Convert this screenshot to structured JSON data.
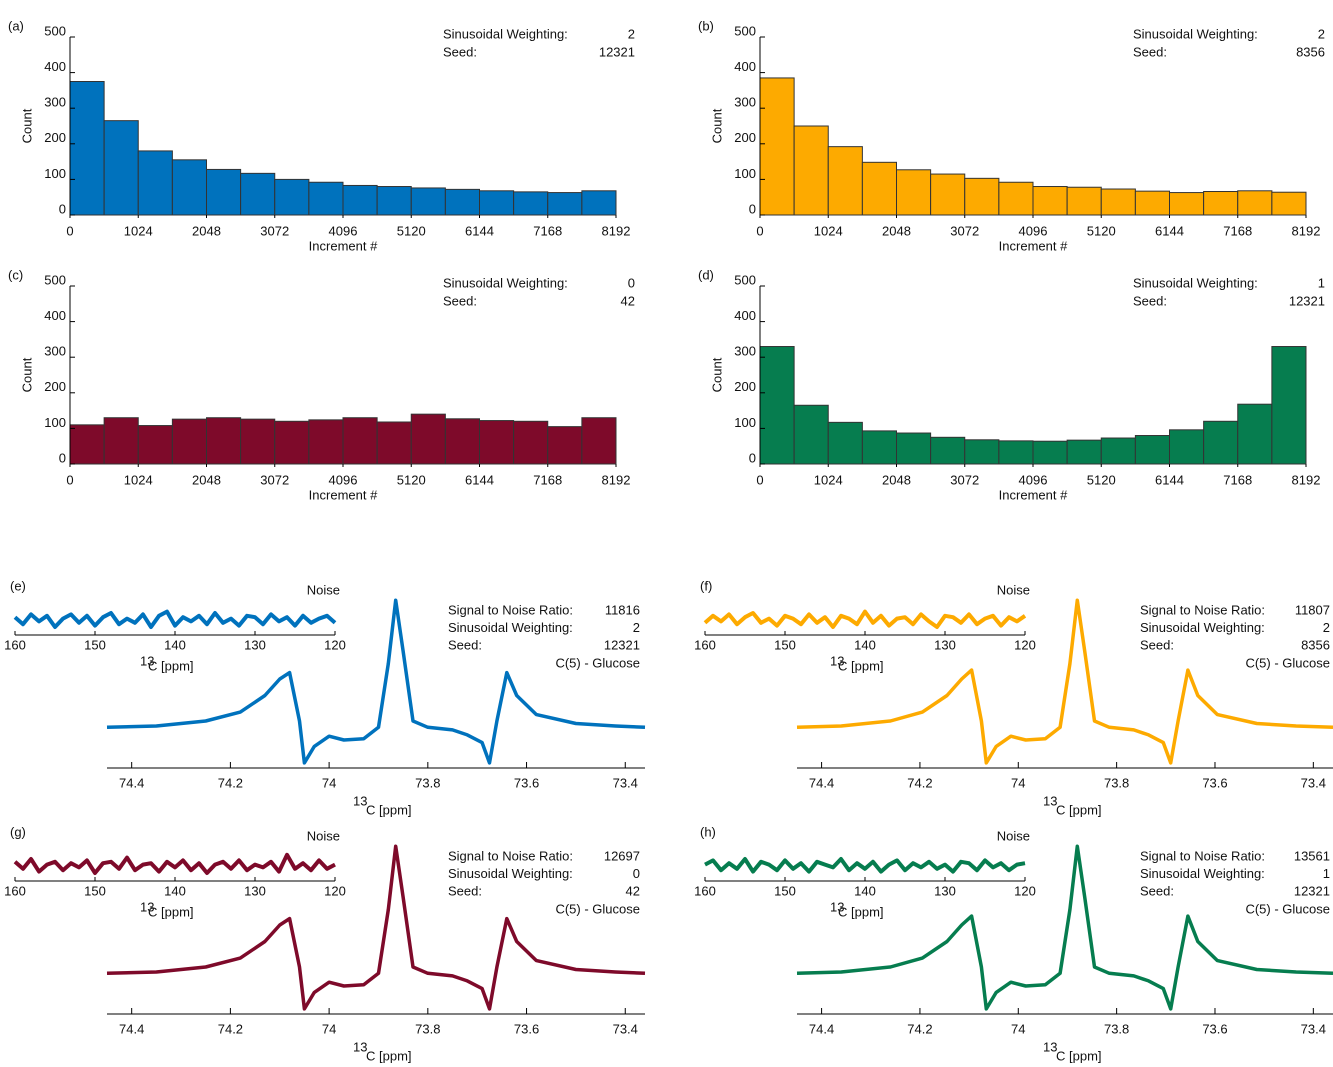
{
  "chart_data": [
    {
      "type": "histogram",
      "panel": "(a)",
      "bins": [
        0,
        512,
        1024,
        1536,
        2048,
        2560,
        3072,
        3584,
        4096,
        4608,
        5120,
        5632,
        6144,
        6656,
        7168,
        7680,
        8192
      ],
      "values": [
        375,
        265,
        180,
        155,
        128,
        117,
        100,
        92,
        83,
        80,
        76,
        72,
        68,
        65,
        63,
        68
      ],
      "color": "#0072bd",
      "xlim": [
        0,
        8192
      ],
      "ylim": [
        0,
        500
      ],
      "xticks": [
        0,
        1024,
        2048,
        3072,
        4096,
        5120,
        6144,
        7168,
        8192
      ],
      "yticks": [
        0,
        100,
        200,
        300,
        400,
        500
      ],
      "xlabel": "Increment #",
      "ylabel": "Count",
      "annotations": [
        {
          "label": "Sinusoidal Weighting:",
          "value": 2
        },
        {
          "label": "Seed:",
          "value": 12321
        }
      ]
    },
    {
      "type": "histogram",
      "panel": "(b)",
      "bins": [
        0,
        512,
        1024,
        1536,
        2048,
        2560,
        3072,
        3584,
        4096,
        4608,
        5120,
        5632,
        6144,
        6656,
        7168,
        7680,
        8192
      ],
      "values": [
        385,
        250,
        192,
        148,
        127,
        115,
        103,
        92,
        80,
        78,
        73,
        67,
        63,
        66,
        68,
        64
      ],
      "color": "#fdaa00",
      "xlim": [
        0,
        8192
      ],
      "ylim": [
        0,
        500
      ],
      "xticks": [
        0,
        1024,
        2048,
        3072,
        4096,
        5120,
        6144,
        7168,
        8192
      ],
      "yticks": [
        0,
        100,
        200,
        300,
        400,
        500
      ],
      "xlabel": "Increment #",
      "ylabel": "Count",
      "annotations": [
        {
          "label": "Sinusoidal Weighting:",
          "value": 2
        },
        {
          "label": "Seed:",
          "value": 8356
        }
      ]
    },
    {
      "type": "histogram",
      "panel": "(c)",
      "bins": [
        0,
        512,
        1024,
        1536,
        2048,
        2560,
        3072,
        3584,
        4096,
        4608,
        5120,
        5632,
        6144,
        6656,
        7168,
        7680,
        8192
      ],
      "values": [
        110,
        130,
        108,
        126,
        130,
        126,
        120,
        124,
        130,
        118,
        140,
        127,
        122,
        120,
        105,
        130
      ],
      "color": "#7e0a2a",
      "xlim": [
        0,
        8192
      ],
      "ylim": [
        0,
        500
      ],
      "xticks": [
        0,
        1024,
        2048,
        3072,
        4096,
        5120,
        6144,
        7168,
        8192
      ],
      "yticks": [
        0,
        100,
        200,
        300,
        400,
        500
      ],
      "xlabel": "Increment #",
      "ylabel": "Count",
      "annotations": [
        {
          "label": "Sinusoidal Weighting:",
          "value": 0
        },
        {
          "label": "Seed:",
          "value": 42
        }
      ]
    },
    {
      "type": "histogram",
      "panel": "(d)",
      "bins": [
        0,
        512,
        1024,
        1536,
        2048,
        2560,
        3072,
        3584,
        4096,
        4608,
        5120,
        5632,
        6144,
        6656,
        7168,
        7680,
        8192
      ],
      "values": [
        330,
        165,
        117,
        93,
        87,
        75,
        68,
        65,
        64,
        67,
        73,
        80,
        96,
        120,
        168,
        330
      ],
      "color": "#067d4f",
      "xlim": [
        0,
        8192
      ],
      "ylim": [
        0,
        500
      ],
      "xticks": [
        0,
        1024,
        2048,
        3072,
        4096,
        5120,
        6144,
        7168,
        8192
      ],
      "yticks": [
        0,
        100,
        200,
        300,
        400,
        500
      ],
      "xlabel": "Increment #",
      "ylabel": "Count",
      "annotations": [
        {
          "label": "Sinusoidal Weighting:",
          "value": 1
        },
        {
          "label": "Seed:",
          "value": 12321
        }
      ]
    },
    {
      "type": "line",
      "panel": "(e)",
      "x": [
        74.45,
        74.35,
        74.25,
        74.18,
        74.13,
        74.1,
        74.08,
        74.06,
        74.05,
        74.03,
        74.0,
        73.97,
        73.93,
        73.9,
        73.88,
        73.865,
        73.85,
        73.83,
        73.8,
        73.75,
        73.72,
        73.69,
        73.675,
        73.66,
        73.64,
        73.62,
        73.58,
        73.5,
        73.42,
        73.36
      ],
      "values": [
        0,
        0.01,
        0.05,
        0.12,
        0.25,
        0.38,
        0.43,
        0.05,
        -0.28,
        -0.15,
        -0.07,
        -0.1,
        -0.09,
        0,
        0.5,
        1.0,
        0.6,
        0.05,
        0,
        -0.02,
        -0.06,
        -0.12,
        -0.28,
        0.05,
        0.43,
        0.25,
        0.1,
        0.03,
        0.01,
        0
      ],
      "color": "#0072bd",
      "xlim": [
        74.45,
        73.36
      ],
      "ylim": [
        -0.32,
        1.08
      ],
      "xticks": [
        74.4,
        74.2,
        74,
        73.8,
        73.6,
        73.4
      ],
      "xlabel_isotope": "13",
      "xlabel": "C [ppm]",
      "annotations": [
        {
          "label": "Signal to Noise Ratio:",
          "value": 11816
        },
        {
          "label": "Sinusoidal Weighting:",
          "value": 2
        },
        {
          "label": "Seed:",
          "value": 12321
        }
      ],
      "compound": "C(5) - Glucose",
      "inset": {
        "title": "Noise",
        "x": [
          160,
          159,
          158,
          157,
          156,
          155,
          154,
          153,
          152,
          151,
          150,
          149,
          148,
          147,
          146,
          145,
          144,
          143,
          142,
          141,
          140,
          139,
          138,
          137,
          136,
          135,
          134,
          133,
          132,
          131,
          130,
          129,
          128,
          127,
          126,
          125,
          124,
          123,
          122,
          121,
          120
        ],
        "values": [
          0.2,
          -0.3,
          0.4,
          -0.1,
          0.3,
          -0.5,
          0.1,
          0.4,
          -0.2,
          0.3,
          -0.4,
          0.2,
          0.5,
          -0.3,
          0.1,
          -0.2,
          0.4,
          -0.5,
          0.3,
          0.6,
          -0.4,
          0.2,
          -0.1,
          0.3,
          -0.3,
          0.5,
          -0.2,
          0.1,
          -0.4,
          0.3,
          0.2,
          -0.3,
          0.4,
          -0.1,
          0.2,
          -0.4,
          0.3,
          -0.2,
          0.1,
          0.3,
          -0.2
        ],
        "xlim": [
          160,
          120
        ],
        "ylim": [
          -1,
          1
        ],
        "xticks": [
          160,
          150,
          140,
          130,
          120
        ],
        "xlabel_isotope": "13",
        "xlabel": "C [ppm]"
      }
    },
    {
      "type": "line",
      "panel": "(f)",
      "x": [
        74.45,
        74.36,
        74.26,
        74.195,
        74.145,
        74.115,
        74.095,
        74.075,
        74.065,
        74.045,
        74.015,
        73.985,
        73.945,
        73.915,
        73.895,
        73.88,
        73.865,
        73.845,
        73.815,
        73.765,
        73.735,
        73.705,
        73.69,
        73.675,
        73.655,
        73.635,
        73.595,
        73.515,
        73.435,
        73.36
      ],
      "values": [
        0,
        0.01,
        0.05,
        0.12,
        0.25,
        0.38,
        0.45,
        0.05,
        -0.28,
        -0.15,
        -0.07,
        -0.1,
        -0.09,
        0,
        0.5,
        1.0,
        0.6,
        0.05,
        0,
        -0.02,
        -0.06,
        -0.12,
        -0.28,
        0.05,
        0.45,
        0.25,
        0.1,
        0.03,
        0.01,
        0
      ],
      "color": "#fdaa00",
      "xlim": [
        74.45,
        73.36
      ],
      "ylim": [
        -0.32,
        1.08
      ],
      "xticks": [
        74.4,
        74.2,
        74,
        73.8,
        73.6,
        73.4
      ],
      "xlabel_isotope": "13",
      "xlabel": "C [ppm]",
      "annotations": [
        {
          "label": "Signal to Noise Ratio:",
          "value": 11807
        },
        {
          "label": "Sinusoidal Weighting:",
          "value": 2
        },
        {
          "label": "Seed:",
          "value": 8356
        }
      ],
      "compound": "C(5) - Glucose",
      "inset": {
        "title": "Noise",
        "x": [
          160,
          159,
          158,
          157,
          156,
          155,
          154,
          153,
          152,
          151,
          150,
          149,
          148,
          147,
          146,
          145,
          144,
          143,
          142,
          141,
          140,
          139,
          138,
          137,
          136,
          135,
          134,
          133,
          132,
          131,
          130,
          129,
          128,
          127,
          126,
          125,
          124,
          123,
          122,
          121,
          120
        ],
        "values": [
          -0.2,
          0.3,
          -0.1,
          0.4,
          -0.3,
          0.2,
          0.5,
          -0.2,
          0.1,
          -0.4,
          0.3,
          0.1,
          -0.3,
          0.4,
          -0.2,
          0.2,
          -0.5,
          0.3,
          0.1,
          -0.3,
          0.6,
          -0.2,
          0.3,
          -0.4,
          0.1,
          0.2,
          -0.3,
          0.4,
          -0.1,
          -0.5,
          0.3,
          0.2,
          -0.2,
          0.4,
          -0.3,
          0.1,
          0.3,
          -0.4,
          0.2,
          -0.1,
          0.3
        ],
        "xlim": [
          160,
          120
        ],
        "ylim": [
          -1,
          1
        ],
        "xticks": [
          160,
          150,
          140,
          130,
          120
        ],
        "xlabel_isotope": "13",
        "xlabel": "C [ppm]"
      }
    },
    {
      "type": "line",
      "panel": "(g)",
      "x": [
        74.45,
        74.35,
        74.25,
        74.18,
        74.13,
        74.1,
        74.08,
        74.06,
        74.05,
        74.03,
        74.0,
        73.97,
        73.93,
        73.9,
        73.88,
        73.865,
        73.85,
        73.83,
        73.8,
        73.75,
        73.72,
        73.69,
        73.675,
        73.66,
        73.64,
        73.62,
        73.58,
        73.5,
        73.42,
        73.36
      ],
      "values": [
        0,
        0.01,
        0.05,
        0.12,
        0.25,
        0.38,
        0.43,
        0.05,
        -0.28,
        -0.15,
        -0.07,
        -0.1,
        -0.09,
        0,
        0.5,
        1.0,
        0.6,
        0.05,
        0,
        -0.02,
        -0.06,
        -0.12,
        -0.28,
        0.05,
        0.43,
        0.25,
        0.1,
        0.03,
        0.01,
        0
      ],
      "color": "#7e0a2a",
      "xlim": [
        74.45,
        73.36
      ],
      "ylim": [
        -0.32,
        1.08
      ],
      "xticks": [
        74.4,
        74.2,
        74,
        73.8,
        73.6,
        73.4
      ],
      "xlabel_isotope": "13",
      "xlabel": "C [ppm]",
      "annotations": [
        {
          "label": "Signal to Noise Ratio:",
          "value": 12697
        },
        {
          "label": "Sinusoidal Weighting:",
          "value": 0
        },
        {
          "label": "Seed:",
          "value": 42
        }
      ],
      "compound": "C(5) - Glucose",
      "inset": {
        "title": "Noise",
        "x": [
          160,
          159,
          158,
          157,
          156,
          155,
          154,
          153,
          152,
          151,
          150,
          149,
          148,
          147,
          146,
          145,
          144,
          143,
          142,
          141,
          140,
          139,
          138,
          137,
          136,
          135,
          134,
          133,
          132,
          131,
          130,
          129,
          128,
          127,
          126,
          125,
          124,
          123,
          122,
          121,
          120
        ],
        "values": [
          0.3,
          -0.2,
          0.5,
          -0.4,
          0.1,
          0.3,
          -0.3,
          0.2,
          -0.1,
          0.4,
          -0.5,
          0.2,
          0.3,
          -0.2,
          0.6,
          -0.3,
          0.1,
          0.2,
          -0.4,
          0.3,
          -0.1,
          0.4,
          -0.3,
          0.2,
          -0.5,
          0.1,
          0.3,
          -0.2,
          0.4,
          -0.3,
          0.1,
          -0.1,
          0.3,
          -0.4,
          0.8,
          -0.2,
          0.2,
          -0.3,
          0.4,
          -0.2,
          0.1
        ],
        "xlim": [
          160,
          120
        ],
        "ylim": [
          -1,
          1
        ],
        "xticks": [
          160,
          150,
          140,
          130,
          120
        ],
        "xlabel_isotope": "13",
        "xlabel": "C [ppm]"
      }
    },
    {
      "type": "line",
      "panel": "(h)",
      "x": [
        74.45,
        74.36,
        74.26,
        74.195,
        74.145,
        74.115,
        74.095,
        74.075,
        74.065,
        74.045,
        74.015,
        73.985,
        73.945,
        73.915,
        73.895,
        73.88,
        73.865,
        73.845,
        73.815,
        73.765,
        73.735,
        73.705,
        73.69,
        73.675,
        73.655,
        73.635,
        73.595,
        73.515,
        73.435,
        73.36
      ],
      "values": [
        0,
        0.01,
        0.05,
        0.12,
        0.25,
        0.38,
        0.45,
        0.05,
        -0.28,
        -0.15,
        -0.07,
        -0.1,
        -0.09,
        0,
        0.5,
        1.0,
        0.6,
        0.05,
        0,
        -0.02,
        -0.06,
        -0.12,
        -0.28,
        0.05,
        0.45,
        0.25,
        0.1,
        0.03,
        0.01,
        0
      ],
      "color": "#067d4f",
      "xlim": [
        74.45,
        73.36
      ],
      "ylim": [
        -0.32,
        1.08
      ],
      "xticks": [
        74.4,
        74.2,
        74,
        73.8,
        73.6,
        73.4
      ],
      "xlabel_isotope": "13",
      "xlabel": "C [ppm]",
      "annotations": [
        {
          "label": "Signal to Noise Ratio:",
          "value": 13561
        },
        {
          "label": "Sinusoidal Weighting:",
          "value": 1
        },
        {
          "label": "Seed:",
          "value": 12321
        }
      ],
      "compound": "C(5) - Glucose",
      "inset": {
        "title": "Noise",
        "x": [
          160,
          159,
          158,
          157,
          156,
          155,
          154,
          153,
          152,
          151,
          150,
          149,
          148,
          147,
          146,
          145,
          144,
          143,
          142,
          141,
          140,
          139,
          138,
          137,
          136,
          135,
          134,
          133,
          132,
          131,
          130,
          129,
          128,
          127,
          126,
          125,
          124,
          123,
          122,
          121,
          120
        ],
        "values": [
          0.1,
          0.4,
          -0.3,
          0.2,
          -0.2,
          0.5,
          -0.4,
          0.3,
          0.1,
          -0.3,
          0.4,
          -0.2,
          0.2,
          -0.4,
          0.3,
          0.1,
          -0.1,
          0.5,
          -0.3,
          0.2,
          -0.2,
          0.3,
          -0.4,
          0.1,
          0.4,
          -0.3,
          0.2,
          -0.1,
          0.3,
          -0.2,
          0.1,
          -0.4,
          0.3,
          0.2,
          -0.3,
          0.4,
          -0.1,
          0.2,
          -0.3,
          0.1,
          0.2
        ],
        "xlim": [
          160,
          120
        ],
        "ylim": [
          -1,
          1
        ],
        "xticks": [
          160,
          150,
          140,
          130,
          120
        ],
        "xlabel_isotope": "13",
        "xlabel": "C [ppm]"
      }
    }
  ]
}
